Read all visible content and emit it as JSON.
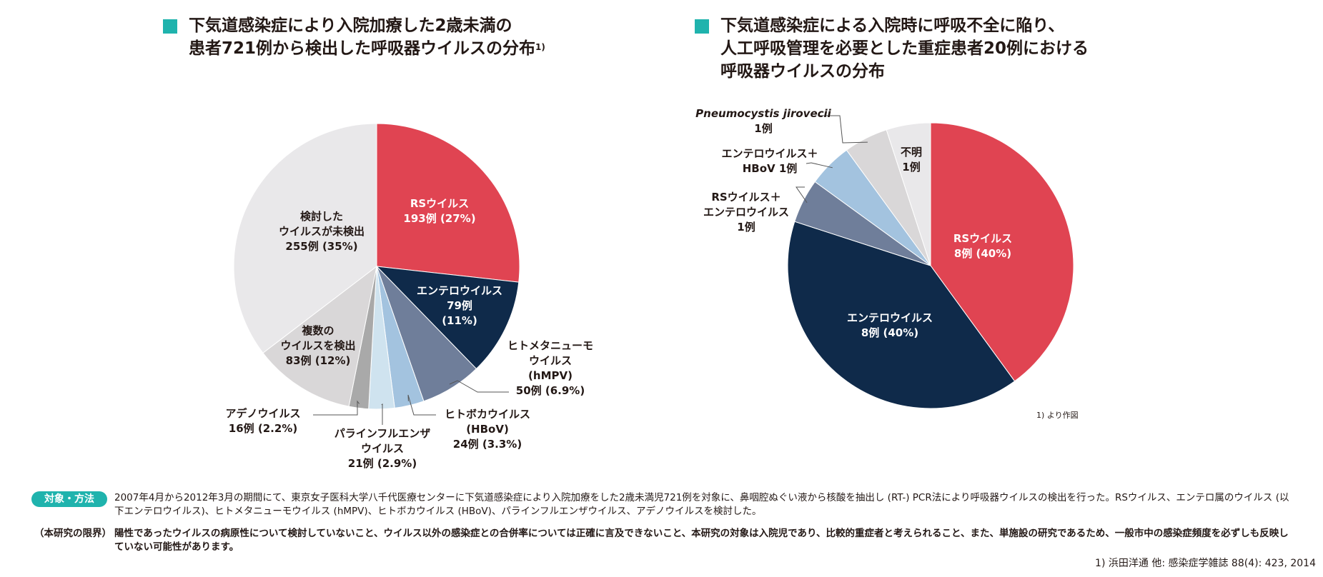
{
  "left_title": {
    "line1": "下気道感染症により入院加療した2歳未満の",
    "line2": "患者721例から検出した呼吸器ウイルスの分布",
    "sup": "1)"
  },
  "right_title": {
    "line1": "下気道感染症による入院時に呼吸不全に陥り、",
    "line2": "人工呼吸管理を必要とした重症患者20例における",
    "line3": "呼吸器ウイルスの分布"
  },
  "chart_data": [
    {
      "type": "pie",
      "title": "下気道感染症により入院加療した2歳未満の患者721例から検出した呼吸器ウイルスの分布",
      "total": 721,
      "slices": [
        {
          "name": "RSウイルス",
          "count": 193,
          "percent": 27,
          "color": "#e04452",
          "lines": [
            "RSウイルス",
            "193例 (27%)"
          ],
          "text_color": "#ffffff"
        },
        {
          "name": "エンテロウイルス",
          "count": 79,
          "percent": 11,
          "color": "#0f2a4a",
          "lines": [
            "エンテロウイルス",
            "79例",
            "(11%)"
          ],
          "text_color": "#ffffff"
        },
        {
          "name": "ヒトメタニューモウイルス (hMPV)",
          "count": 50,
          "percent": 6.9,
          "color": "#6f7e9a",
          "lines": [
            "ヒトメタニューモ",
            "ウイルス",
            "(hMPV)",
            "50例 (6.9%)"
          ],
          "text_color": "#231815"
        },
        {
          "name": "ヒトボカウイルス (HBoV)",
          "count": 24,
          "percent": 3.3,
          "color": "#a3c3df",
          "lines": [
            "ヒトボカウイルス",
            "(HBoV)",
            "24例 (3.3%)"
          ],
          "text_color": "#231815"
        },
        {
          "name": "パラインフルエンザウイルス",
          "count": 21,
          "percent": 2.9,
          "color": "#cfe3ef",
          "lines": [
            "パラインフルエンザ",
            "ウイルス",
            "21例 (2.9%)"
          ],
          "text_color": "#231815"
        },
        {
          "name": "アデノウイルス",
          "count": 16,
          "percent": 2.2,
          "color": "#a9a9a9",
          "lines": [
            "アデノウイルス",
            "16例 (2.2%)"
          ],
          "text_color": "#231815"
        },
        {
          "name": "複数のウイルスを検出",
          "count": 83,
          "percent": 12,
          "color": "#d9d7d8",
          "lines": [
            "複数の",
            "ウイルスを検出",
            "83例 (12%)"
          ],
          "text_color": "#231815"
        },
        {
          "name": "検討したウイルスが未検出",
          "count": 255,
          "percent": 35,
          "color": "#e9e8ea",
          "lines": [
            "検討した",
            "ウイルスが未検出",
            "255例 (35%)"
          ],
          "text_color": "#231815"
        }
      ]
    },
    {
      "type": "pie",
      "title": "下気道感染症による入院時に呼吸不全に陥り、人工呼吸管理を必要とした重症患者20例における呼吸器ウイルスの分布",
      "total": 20,
      "slices": [
        {
          "name": "RSウイルス",
          "count": 8,
          "percent": 40,
          "color": "#e04452",
          "lines": [
            "RSウイルス",
            "8例 (40%)"
          ],
          "text_color": "#ffffff"
        },
        {
          "name": "エンテロウイルス",
          "count": 8,
          "percent": 40,
          "color": "#0f2a4a",
          "lines": [
            "エンテロウイルス",
            "8例 (40%)"
          ],
          "text_color": "#ffffff"
        },
        {
          "name": "RSウイルス＋エンテロウイルス",
          "count": 1,
          "color": "#6f7e9a",
          "lines": [
            "RSウイルス＋",
            "エンテロウイルス",
            "1例"
          ],
          "text_color": "#231815"
        },
        {
          "name": "エンテロウイルス＋HBoV",
          "count": 1,
          "color": "#a3c3df",
          "lines": [
            "エンテロウイルス＋",
            "HBoV 1例"
          ],
          "text_color": "#231815"
        },
        {
          "name": "Pneumocystis jirovecii",
          "count": 1,
          "color": "#d9d7d8",
          "lines": [
            "Pneumocystis jirovecii",
            "1例"
          ],
          "text_color": "#231815",
          "italic_first_line": true
        },
        {
          "name": "不明",
          "count": 1,
          "color": "#e9e8ea",
          "lines": [
            "不明",
            "1例"
          ],
          "text_color": "#231815"
        }
      ],
      "note": "1) より作図"
    }
  ],
  "footer": {
    "method_tag": "対象・方法",
    "method_text": "2007年4月から2012年3月の期間にて、東京女子医科大学八千代医療センターに下気道感染症により入院加療をした2歳未満児721例を対象に、鼻咽腔ぬぐい液から核酸を抽出し (RT-) PCR法により呼吸器ウイルスの検出を行った。RSウイルス、エンテロ属のウイルス (以下エンテロウイルス)、ヒトメタニューモウイルス (hMPV)、ヒトボカウイルス (HBoV)、パラインフルエンザウイルス、アデノウイルスを検討した。",
    "limit_tag": "（本研究の限界）",
    "limit_text": "陽性であったウイルスの病原性について検討していないこと、ウイルス以外の感染症との合併率については正確に言及できないこと、本研究の対象は入院児であり、比較的重症者と考えられること、また、単施設の研究であるため、一般市中の感染症頻度を必ずしも反映していない可能性があります。",
    "reference": "1) 浜田洋通 他: 感染症学雑誌 88(4): 423, 2014"
  }
}
